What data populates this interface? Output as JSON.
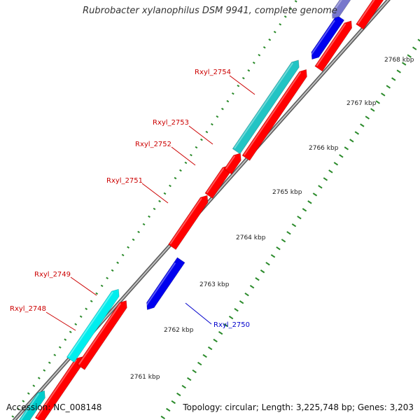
{
  "title": "Rubrobacter xylanophilus DSM 9941, complete genome",
  "footer": {
    "accession": "Accession: NC_008148",
    "summary": "Topology: circular; Length: 3,225,748 bp; Genes: 3,203"
  },
  "colors": {
    "forward_gene": "#ff0000",
    "reverse_gene": "#0000ee",
    "forward_other": "#00cccc",
    "reverse_other_faded": "#7777cc",
    "tick": "#2a8a2a",
    "backbone": "#999999",
    "label_forward": "#cc0000",
    "label_reverse": "#0000cc",
    "kbp_label": "#222222"
  },
  "scale_labels": [
    "2761 kbp",
    "2762 kbp",
    "2763 kbp",
    "2764 kbp",
    "2765 kbp",
    "2766 kbp",
    "2767 kbp",
    "2768 kbp"
  ],
  "gene_labels": [
    "Rxyl_2748",
    "Rxyl_2749",
    "Rxyl_2750",
    "Rxyl_2751",
    "Rxyl_2752",
    "Rxyl_2753",
    "Rxyl_2754"
  ]
}
